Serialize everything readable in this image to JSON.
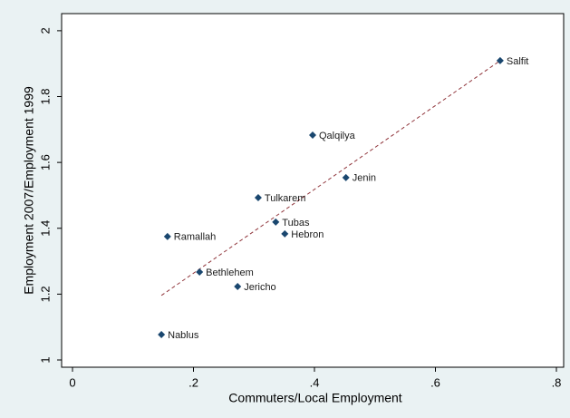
{
  "chart_data": {
    "type": "scatter",
    "xlabel": "Commuters/Local Employment",
    "ylabel": "Employment 2007/Employment 1999",
    "labels": [
      "Salfit",
      "Qalqilya",
      "Jenin",
      "Tulkarem",
      "Tubas",
      "Hebron",
      "Ramallah",
      "Bethlehem",
      "Jericho",
      "Nablus"
    ],
    "x": [
      0.707,
      0.397,
      0.452,
      0.307,
      0.336,
      0.351,
      0.157,
      0.21,
      0.273,
      0.147
    ],
    "values": [
      1.909,
      1.683,
      1.554,
      1.493,
      1.419,
      1.383,
      1.375,
      1.267,
      1.223,
      1.077
    ],
    "color": "#1a476f",
    "fit": {
      "x": [
        0.147,
        0.707
      ],
      "values": [
        1.196,
        1.909
      ],
      "color": "#90353b"
    },
    "xlim": [
      -0.018,
      0.812
    ],
    "ylim": [
      0.978,
      2.052
    ],
    "xticks": [
      {
        "value": 0,
        "label": "0"
      },
      {
        "value": 0.2,
        "label": ".2"
      },
      {
        "value": 0.4,
        "label": ".4"
      },
      {
        "value": 0.6,
        "label": ".6"
      },
      {
        "value": 0.8,
        "label": ".8"
      }
    ],
    "yticks": [
      1,
      1.2,
      1.4,
      1.6,
      1.8,
      2
    ],
    "grid": false
  }
}
